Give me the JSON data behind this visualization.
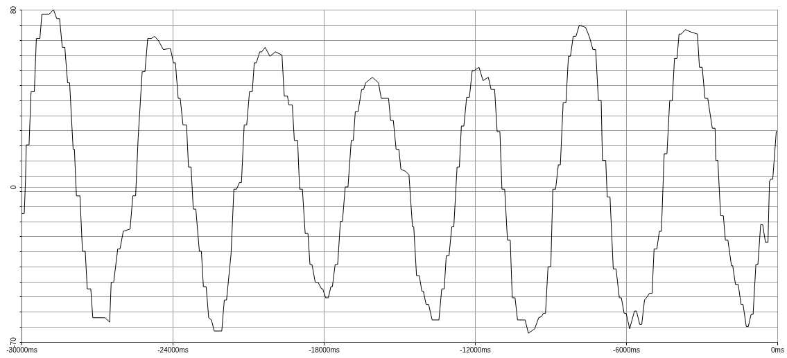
{
  "chart_data": {
    "type": "line",
    "xlim": [
      -30000,
      0
    ],
    "ylim": [
      -70,
      80
    ],
    "xticks": [
      {
        "value": -30000,
        "label": "-30000ms"
      },
      {
        "value": -24000,
        "label": "-24000ms"
      },
      {
        "value": -18000,
        "label": "-18000ms"
      },
      {
        "value": -12000,
        "label": "-12000ms"
      },
      {
        "value": -6000,
        "label": "-6000ms"
      },
      {
        "value": 0,
        "label": "0ms"
      }
    ],
    "yticks": [
      -70,
      {
        "value": -63.2,
        "label": null
      },
      {
        "value": -56.4,
        "label": null
      },
      {
        "value": -49.5,
        "label": null
      },
      {
        "value": -42.7,
        "label": null
      },
      {
        "value": -35.9,
        "label": null
      },
      {
        "value": -29.1,
        "label": null
      },
      {
        "value": -22.3,
        "label": null
      },
      {
        "value": -15.5,
        "label": null
      },
      {
        "value": -8.6,
        "label": null
      },
      {
        "value": -1.8,
        "label": null
      },
      0,
      {
        "value": 5,
        "label": null
      },
      {
        "value": 11.8,
        "label": null
      },
      {
        "value": 18.6,
        "label": null
      },
      {
        "value": 25.5,
        "label": null
      },
      {
        "value": 32.3,
        "label": null
      },
      {
        "value": 39.1,
        "label": null
      },
      {
        "value": 45.9,
        "label": null
      },
      {
        "value": 52.7,
        "label": null
      },
      {
        "value": 59.5,
        "label": null
      },
      {
        "value": 66.4,
        "label": null
      },
      {
        "value": 73.2,
        "label": null
      },
      80
    ],
    "grid": true,
    "marker": "none",
    "line_style": "solid",
    "x": [
      -30000,
      -29890,
      -29840,
      -29810,
      -29700,
      -29620,
      -29490,
      -29410,
      -29270,
      -29190,
      -28900,
      -28730,
      -28600,
      -28490,
      -28380,
      -28280,
      -28170,
      -28090,
      -27950,
      -27900,
      -27820,
      -27680,
      -27580,
      -27470,
      -27390,
      -27250,
      -27170,
      -26690,
      -26500,
      -26440,
      -26340,
      -26180,
      -26090,
      -25960,
      -25690,
      -25580,
      -25470,
      -25370,
      -25210,
      -25100,
      -24990,
      -24850,
      -24720,
      -24560,
      -24370,
      -24100,
      -24050,
      -23970,
      -23890,
      -23780,
      -23700,
      -23590,
      -23450,
      -23370,
      -23270,
      -23180,
      -23080,
      -22940,
      -22860,
      -22780,
      -22670,
      -22570,
      -22460,
      -22350,
      -22050,
      -21950,
      -21860,
      -21680,
      -21570,
      -21460,
      -21350,
      -21270,
      -21160,
      -21060,
      -20950,
      -20840,
      -20760,
      -20680,
      -20540,
      -20460,
      -20330,
      -20140,
      -19920,
      -19660,
      -19570,
      -19440,
      -19390,
      -19250,
      -19170,
      -19040,
      -18960,
      -18850,
      -18740,
      -18630,
      -18550,
      -18470,
      -18340,
      -18230,
      -18090,
      -18040,
      -17930,
      -17820,
      -17720,
      -17660,
      -17550,
      -17450,
      -17340,
      -17260,
      -17150,
      -17040,
      -16910,
      -16830,
      -16750,
      -16640,
      -16500,
      -16420,
      -16340,
      -16230,
      -16070,
      -15830,
      -15720,
      -15430,
      -15350,
      -15240,
      -15130,
      -15020,
      -14940,
      -14750,
      -14620,
      -14480,
      -14430,
      -14320,
      -14210,
      -14110,
      -14050,
      -13940,
      -13840,
      -13700,
      -13430,
      -13320,
      -13220,
      -13140,
      -13030,
      -12920,
      -12840,
      -12710,
      -12620,
      -12540,
      -12440,
      -12330,
      -12220,
      -12110,
      -12030,
      -11840,
      -11680,
      -11470,
      -11360,
      -11220,
      -11120,
      -11010,
      -10930,
      -10820,
      -10710,
      -10600,
      -10520,
      -10410,
      -10310,
      -10010,
      -9880,
      -9630,
      -9470,
      -9360,
      -9280,
      -9200,
      -9100,
      -8990,
      -8910,
      -8800,
      -8690,
      -8610,
      -8500,
      -8390,
      -8290,
      -8210,
      -8100,
      -7990,
      -7860,
      -7610,
      -7450,
      -7320,
      -7210,
      -7100,
      -6990,
      -6940,
      -6810,
      -6750,
      -6640,
      -6510,
      -6400,
      -6270,
      -6190,
      -6080,
      -6000,
      -5860,
      -5670,
      -5590,
      -5460,
      -5380,
      -5270,
      -5160,
      -5080,
      -4970,
      -4890,
      -4780,
      -4680,
      -4600,
      -4490,
      -4380,
      -4270,
      -4170,
      -4080,
      -3980,
      -3900,
      -3810,
      -3650,
      -3440,
      -3170,
      -3090,
      -2980,
      -2870,
      -2760,
      -2580,
      -2470,
      -2440,
      -2360,
      -2250,
      -2140,
      -2060,
      -1960,
      -1820,
      -1770,
      -1660,
      -1550,
      -1440,
      -1360,
      -1230,
      -1150,
      -1040,
      -960,
      -850,
      -770,
      -660,
      -580,
      -470,
      -370,
      -310,
      -260,
      -180,
      -40,
      0
    ],
    "series": [
      {
        "color": "#000000",
        "values": [
          -12,
          -12,
          3.5,
          19,
          19,
          43,
          43,
          67,
          67,
          78,
          78,
          80,
          76,
          76,
          63,
          63,
          47,
          47,
          17,
          17,
          -4,
          -4,
          -29,
          -29,
          -46,
          -46,
          -59,
          -59,
          -61,
          -43,
          -43,
          -28,
          -28,
          -20,
          -19,
          -4,
          -4,
          22,
          52,
          52,
          67,
          67,
          68,
          66,
          62,
          62.5,
          60.5,
          56,
          56,
          40,
          40,
          28,
          28,
          9,
          9,
          -10,
          -10,
          -29,
          -29,
          -45,
          -45,
          -59,
          -60,
          -65,
          -65,
          -51,
          -51,
          -30,
          -1,
          -1,
          2,
          2,
          28,
          28,
          43,
          43,
          56,
          56,
          61,
          61,
          63,
          59,
          61,
          59.5,
          41,
          41,
          37,
          37,
          21,
          21,
          -1,
          -1,
          -21,
          -21,
          -35,
          -35,
          -43,
          -43,
          -46,
          -46,
          -50,
          -50,
          -45,
          -45,
          -35,
          -35,
          -15.5,
          -15.5,
          0,
          0,
          21,
          21,
          34,
          34,
          44,
          44,
          47,
          48,
          49.5,
          47,
          40,
          40,
          30,
          30,
          17,
          17,
          8,
          7,
          5.5,
          -18,
          -18,
          -40,
          -40,
          -47,
          -47,
          -53,
          -53,
          -60,
          -60,
          -46,
          -46,
          -31,
          -31,
          -18,
          -18,
          9,
          9,
          27.5,
          27.5,
          40.5,
          40.5,
          52.5,
          52.5,
          54,
          48,
          49.5,
          44,
          44,
          25,
          25,
          -1,
          -1,
          -24,
          -24,
          -50,
          -50,
          -60,
          -60,
          -66,
          -64,
          -59,
          -58.5,
          -57,
          -57,
          -36,
          -36,
          -1,
          -1,
          10,
          10,
          38,
          38,
          59,
          59,
          68,
          68,
          73,
          72,
          67.5,
          62,
          62,
          39,
          39,
          12,
          12,
          -4.5,
          -4.5,
          -37,
          -37,
          -50,
          -50,
          -57,
          -57,
          -64,
          -56,
          -56,
          -62,
          -62,
          -51,
          -49.5,
          -48,
          -48,
          -28,
          -28,
          -20,
          -20,
          15,
          15,
          39,
          39,
          58,
          58,
          69,
          69,
          71,
          70,
          69,
          54,
          54,
          40,
          40,
          26.5,
          26.5,
          12,
          12,
          -13,
          -13,
          -24,
          -24,
          -35.5,
          -35.5,
          -44,
          -44,
          -53,
          -53,
          -63,
          -63,
          -57.5,
          -57.5,
          -35,
          -35,
          -17,
          -17,
          -25,
          -25,
          2.5,
          3.5,
          3.5,
          25,
          25
        ]
      }
    ]
  }
}
